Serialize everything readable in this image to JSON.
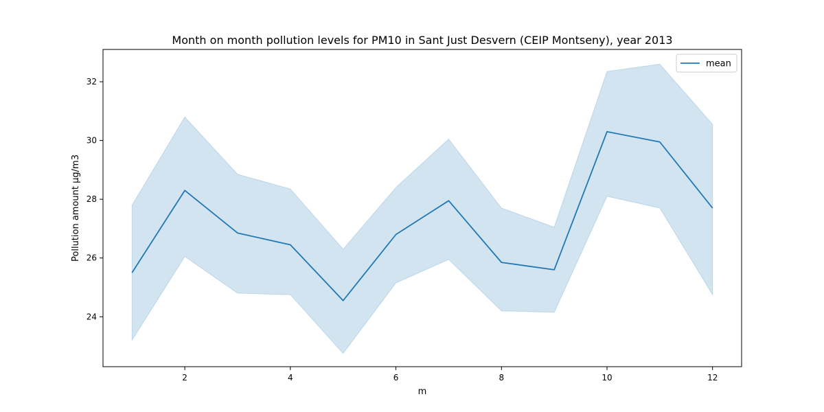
{
  "chart_data": {
    "type": "line",
    "title": "Month on month pollution levels for PM10 in Sant Just Desvern (CEIP Montseny), year 2013",
    "xlabel": "m",
    "ylabel": "Pollution amount µg/m3",
    "x": [
      1,
      2,
      3,
      4,
      5,
      6,
      7,
      8,
      9,
      10,
      11,
      12
    ],
    "xlim": [
      0.45,
      12.55
    ],
    "ylim": [
      22.3,
      33.1
    ],
    "xticks": [
      2,
      4,
      6,
      8,
      10,
      12
    ],
    "yticks": [
      24,
      26,
      28,
      30,
      32
    ],
    "grid": false,
    "legend_position": "top-right",
    "series": [
      {
        "name": "mean",
        "color": "#1f77b4",
        "values": [
          25.5,
          28.3,
          26.85,
          26.45,
          24.55,
          26.8,
          27.95,
          25.85,
          25.6,
          30.3,
          29.95,
          27.7
        ],
        "ci_lower": [
          23.2,
          26.05,
          24.8,
          24.75,
          22.75,
          25.15,
          25.95,
          24.2,
          24.15,
          28.1,
          27.7,
          24.75
        ],
        "ci_upper": [
          27.8,
          30.8,
          28.85,
          28.35,
          26.3,
          28.4,
          30.05,
          27.7,
          27.05,
          32.35,
          32.6,
          30.55
        ]
      }
    ]
  }
}
